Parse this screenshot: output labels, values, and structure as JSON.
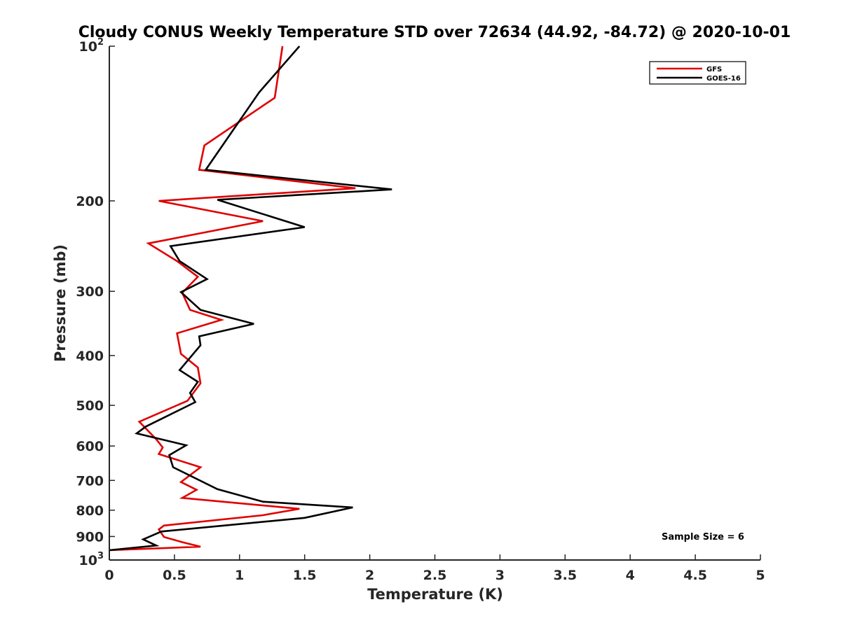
{
  "chart_data": {
    "type": "line",
    "title": "Cloudy CONUS Weekly Temperature STD over 72634 (44.92, -84.72) @ 2020-10-01",
    "xlabel": "Temperature (K)",
    "ylabel": "Pressure (mb)",
    "xlim": [
      0,
      5
    ],
    "ylim": [
      100,
      1000
    ],
    "y_scale": "log",
    "y_reversed": true,
    "grid": false,
    "legend_position": "top-right",
    "x_ticks": [
      "0",
      "0.5",
      "1",
      "1.5",
      "2",
      "2.5",
      "3",
      "3.5",
      "4",
      "4.5",
      "5"
    ],
    "x_tick_values": [
      0,
      0.5,
      1,
      1.5,
      2,
      2.5,
      3,
      3.5,
      4,
      4.5,
      5
    ],
    "y_ticks": [
      {
        "value": 100,
        "base": "10",
        "exp": "2"
      },
      {
        "value": 200,
        "label": "200"
      },
      {
        "value": 300,
        "label": "300"
      },
      {
        "value": 400,
        "label": "400"
      },
      {
        "value": 500,
        "label": "500"
      },
      {
        "value": 600,
        "label": "600"
      },
      {
        "value": 700,
        "label": "700"
      },
      {
        "value": 800,
        "label": "800"
      },
      {
        "value": 900,
        "label": "900"
      },
      {
        "value": 1000,
        "base": "10",
        "exp": "3"
      }
    ],
    "annotation": "Sample Size = 6",
    "series": [
      {
        "name": "GFS",
        "color": "#e00000",
        "points": [
          [
            1.33,
            100
          ],
          [
            1.27,
            126
          ],
          [
            0.73,
            156
          ],
          [
            0.69,
            174
          ],
          [
            1.89,
            189
          ],
          [
            0.38,
            200
          ],
          [
            1.18,
            219
          ],
          [
            0.3,
            242
          ],
          [
            0.52,
            262
          ],
          [
            0.68,
            281
          ],
          [
            0.56,
            302
          ],
          [
            0.62,
            326
          ],
          [
            0.86,
            341
          ],
          [
            0.52,
            362
          ],
          [
            0.55,
            397
          ],
          [
            0.68,
            422
          ],
          [
            0.7,
            453
          ],
          [
            0.6,
            490
          ],
          [
            0.23,
            538
          ],
          [
            0.36,
            582
          ],
          [
            0.41,
            604
          ],
          [
            0.38,
            622
          ],
          [
            0.7,
            660
          ],
          [
            0.55,
            705
          ],
          [
            0.67,
            730
          ],
          [
            0.56,
            757
          ],
          [
            1.46,
            795
          ],
          [
            1.18,
            818
          ],
          [
            0.42,
            857
          ],
          [
            0.38,
            872
          ],
          [
            0.42,
            902
          ],
          [
            0.56,
            923
          ],
          [
            0.7,
            942
          ],
          [
            0.0,
            957
          ]
        ]
      },
      {
        "name": "GOES-16",
        "color": "#000000",
        "points": [
          [
            1.46,
            100
          ],
          [
            1.15,
            123
          ],
          [
            0.74,
            174
          ],
          [
            2.17,
            190
          ],
          [
            0.83,
            199
          ],
          [
            1.5,
            225
          ],
          [
            0.47,
            245
          ],
          [
            0.54,
            262
          ],
          [
            0.75,
            284
          ],
          [
            0.55,
            301
          ],
          [
            0.7,
            326
          ],
          [
            1.11,
            347
          ],
          [
            0.69,
            367
          ],
          [
            0.7,
            382
          ],
          [
            0.54,
            427
          ],
          [
            0.68,
            450
          ],
          [
            0.62,
            473
          ],
          [
            0.66,
            493
          ],
          [
            0.28,
            550
          ],
          [
            0.21,
            567
          ],
          [
            0.59,
            598
          ],
          [
            0.46,
            625
          ],
          [
            0.49,
            660
          ],
          [
            0.83,
            728
          ],
          [
            1.18,
            770
          ],
          [
            1.87,
            790
          ],
          [
            1.5,
            828
          ],
          [
            0.4,
            880
          ],
          [
            0.26,
            912
          ],
          [
            0.36,
            937
          ],
          [
            0.0,
            957
          ]
        ]
      }
    ]
  }
}
